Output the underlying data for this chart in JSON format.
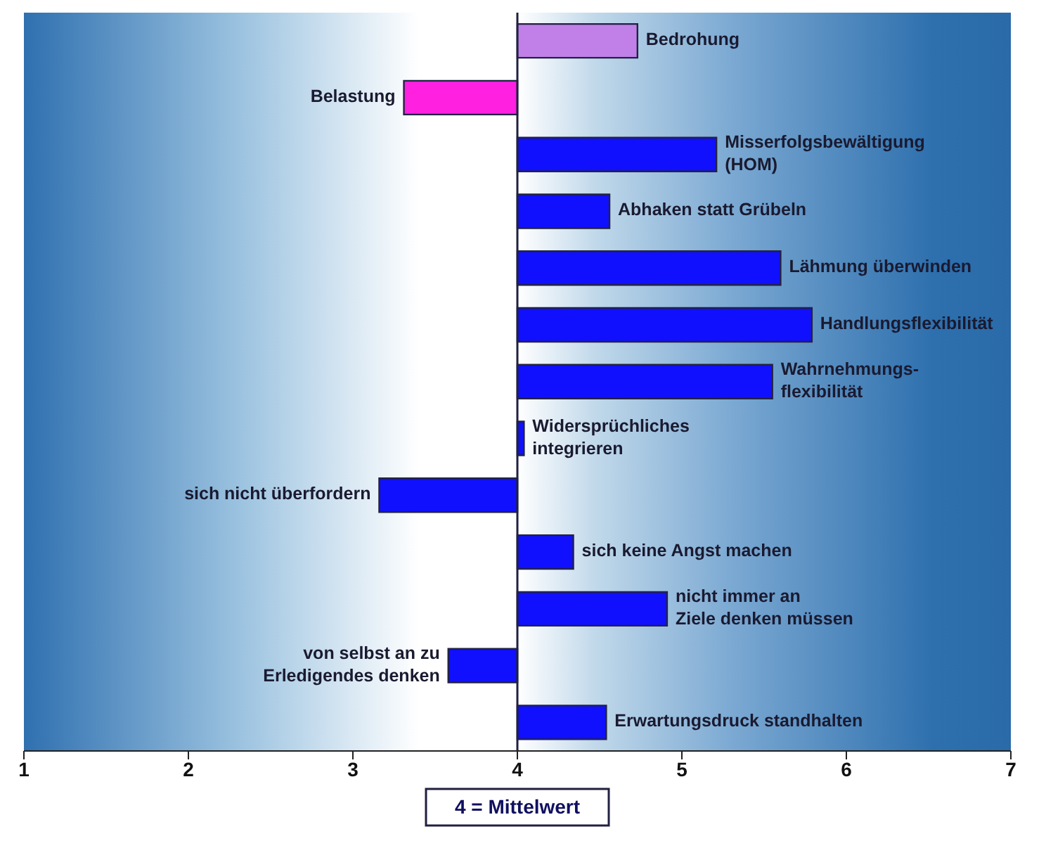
{
  "chart_data": {
    "type": "bar",
    "orientation": "horizontal",
    "categories": [
      "Bedrohung",
      "Belastung",
      "Misserfolgsbewältigung (HOM)",
      "Abhaken statt Grübeln",
      "Lähmung überwinden",
      "Handlungsflexibilität",
      "Wahrnehmungs-flexibilität",
      "Widersprüchliches integrieren",
      "sich nicht überfordern",
      "sich keine Angst machen",
      "nicht immer an Ziele denken müssen",
      "von selbst an zu Erledigendes denken",
      "Erwartungsdruck standhalten"
    ],
    "base": [
      4,
      4,
      4,
      4,
      4,
      4,
      4,
      4,
      4,
      4,
      4,
      4,
      4
    ],
    "values": [
      0.73,
      -0.69,
      1.21,
      0.56,
      1.6,
      1.79,
      1.55,
      0.04,
      -0.84,
      0.34,
      0.91,
      -0.42,
      0.54
    ],
    "colors": [
      "#c080e8",
      "#ff20e0",
      "#1010ff",
      "#1010ff",
      "#1010ff",
      "#1010ff",
      "#1010ff",
      "#1010ff",
      "#1010ff",
      "#1010ff",
      "#1010ff",
      "#1010ff",
      "#1010ff"
    ],
    "xlim": [
      1,
      7
    ],
    "xticks": [
      1,
      2,
      3,
      4,
      5,
      6,
      7
    ],
    "ref_lines": [
      {
        "axis": "x",
        "value": 4,
        "label": "4 = Mittelwert",
        "color": "#202040"
      }
    ],
    "tick_labels": "x",
    "grid": false,
    "legend": false
  }
}
